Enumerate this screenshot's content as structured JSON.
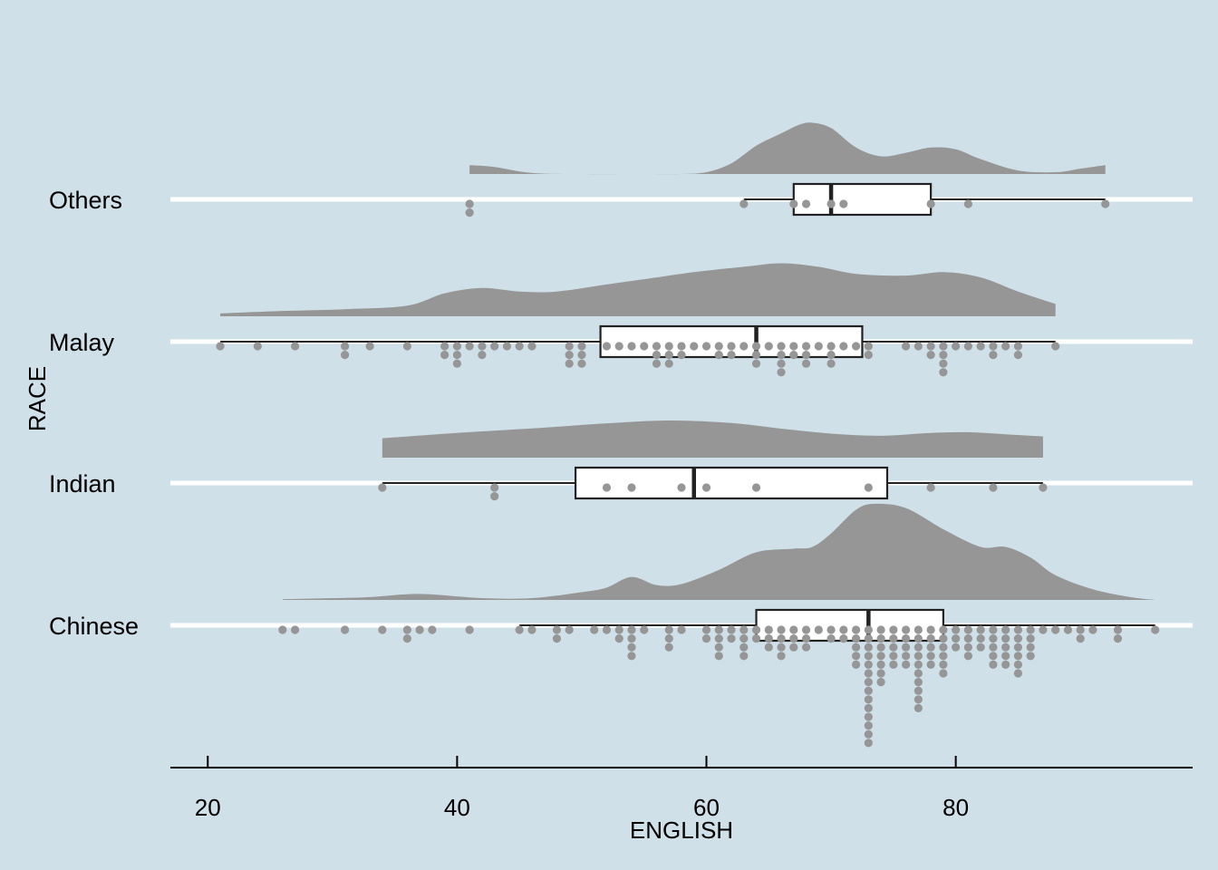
{
  "chart_data": {
    "type": "raincloud",
    "title": "",
    "xlabel": "ENGLISH",
    "ylabel": "RACE",
    "xlim": [
      17,
      99
    ],
    "xticks": [
      20,
      40,
      60,
      80
    ],
    "xtick_labels": [
      "20",
      "40",
      "60",
      "80"
    ],
    "grid": "horizontal",
    "background_color": "#cfe0e8",
    "density_color": "#969696",
    "point_color": "#969696",
    "box_fill": "#ffffff",
    "box_stroke": "#222222",
    "categories": [
      "Chinese",
      "Indian",
      "Malay",
      "Others"
    ],
    "groups": [
      {
        "name": "Chinese",
        "box": {
          "min": 45,
          "q1": 64,
          "median": 73,
          "q3": 79,
          "max": 96
        },
        "outliers": [
          26,
          27,
          31,
          34,
          36,
          36,
          37,
          38,
          41
        ],
        "points": [
          45,
          46,
          48,
          48,
          49,
          51,
          52,
          53,
          53,
          54,
          54,
          54,
          54,
          55,
          57,
          57,
          57,
          58,
          60,
          60,
          61,
          61,
          61,
          61,
          62,
          62,
          63,
          63,
          63,
          63,
          64,
          64,
          65,
          65,
          65,
          66,
          66,
          66,
          66,
          67,
          67,
          67,
          68,
          68,
          68,
          69,
          70,
          70,
          71,
          71,
          72,
          72,
          72,
          72,
          72,
          73,
          73,
          73,
          73,
          73,
          73,
          73,
          73,
          73,
          73,
          73,
          73,
          73,
          73,
          74,
          74,
          74,
          74,
          74,
          74,
          74,
          75,
          75,
          75,
          75,
          75,
          76,
          76,
          76,
          76,
          76,
          77,
          77,
          77,
          77,
          77,
          77,
          77,
          77,
          77,
          77,
          78,
          78,
          78,
          78,
          78,
          79,
          79,
          79,
          79,
          79,
          79,
          80,
          80,
          80,
          81,
          81,
          81,
          81,
          82,
          82,
          82,
          83,
          83,
          83,
          83,
          83,
          84,
          84,
          84,
          84,
          84,
          85,
          85,
          85,
          85,
          85,
          85,
          86,
          86,
          86,
          86,
          87,
          88,
          89,
          90,
          90,
          91,
          93,
          93,
          96
        ],
        "density": [
          [
            26,
            0.02
          ],
          [
            30,
            0.05
          ],
          [
            33,
            0.08
          ],
          [
            37,
            0.17
          ],
          [
            42,
            0.05
          ],
          [
            46,
            0.05
          ],
          [
            50,
            0.22
          ],
          [
            52,
            0.35
          ],
          [
            54,
            0.65
          ],
          [
            56,
            0.42
          ],
          [
            58,
            0.45
          ],
          [
            61,
            0.85
          ],
          [
            64,
            1.35
          ],
          [
            67,
            1.45
          ],
          [
            68.5,
            1.5
          ],
          [
            70,
            1.88
          ],
          [
            72,
            2.55
          ],
          [
            73.5,
            2.72
          ],
          [
            76,
            2.6
          ],
          [
            79,
            2.0
          ],
          [
            82,
            1.5
          ],
          [
            84,
            1.5
          ],
          [
            86,
            1.2
          ],
          [
            88,
            0.7
          ],
          [
            91,
            0.3
          ],
          [
            94,
            0.08
          ],
          [
            96,
            0.0
          ]
        ]
      },
      {
        "name": "Indian",
        "box": {
          "min": 34,
          "q1": 49.5,
          "median": 59,
          "q3": 74.5,
          "max": 87
        },
        "outliers": [],
        "points": [
          34,
          43,
          43,
          52,
          54,
          58,
          60,
          64,
          73,
          78,
          83,
          87
        ],
        "density": [
          [
            34,
            0.55
          ],
          [
            40,
            0.7
          ],
          [
            47,
            0.85
          ],
          [
            52,
            0.97
          ],
          [
            57,
            1.05
          ],
          [
            62,
            0.98
          ],
          [
            66,
            0.82
          ],
          [
            70,
            0.68
          ],
          [
            74,
            0.62
          ],
          [
            78,
            0.7
          ],
          [
            81,
            0.72
          ],
          [
            84,
            0.66
          ],
          [
            87,
            0.6
          ]
        ]
      },
      {
        "name": "Malay",
        "box": {
          "min": 21,
          "q1": 51.5,
          "median": 64,
          "q3": 72.5,
          "max": 88
        },
        "outliers": [],
        "points": [
          21,
          24,
          27,
          31,
          31,
          33,
          36,
          39,
          39,
          40,
          40,
          40,
          41,
          42,
          42,
          43,
          44,
          45,
          46,
          49,
          49,
          49,
          50,
          50,
          50,
          52,
          53,
          54,
          55,
          56,
          56,
          56,
          57,
          57,
          57,
          58,
          58,
          59,
          60,
          61,
          61,
          62,
          62,
          63,
          64,
          64,
          64,
          65,
          66,
          66,
          66,
          66,
          67,
          67,
          68,
          68,
          68,
          69,
          70,
          70,
          70,
          71,
          72,
          73,
          73,
          76,
          77,
          78,
          78,
          79,
          79,
          79,
          79,
          80,
          81,
          82,
          83,
          83,
          84,
          85,
          85,
          88
        ],
        "density": [
          [
            21,
            0.08
          ],
          [
            26,
            0.15
          ],
          [
            31,
            0.2
          ],
          [
            36,
            0.3
          ],
          [
            39,
            0.65
          ],
          [
            42,
            0.8
          ],
          [
            45,
            0.7
          ],
          [
            48,
            0.7
          ],
          [
            52,
            0.9
          ],
          [
            56,
            1.1
          ],
          [
            59,
            1.25
          ],
          [
            63,
            1.4
          ],
          [
            66,
            1.5
          ],
          [
            69,
            1.4
          ],
          [
            72,
            1.2
          ],
          [
            76,
            1.15
          ],
          [
            79,
            1.25
          ],
          [
            82,
            1.1
          ],
          [
            85,
            0.7
          ],
          [
            88,
            0.35
          ]
        ]
      },
      {
        "name": "Others",
        "box": {
          "min": 63,
          "q1": 67,
          "median": 70,
          "q3": 78,
          "max": 92
        },
        "outliers": [
          41
        ],
        "points": [
          41,
          63,
          67,
          68,
          70,
          71,
          78,
          81,
          92
        ],
        "density": [
          [
            41,
            0.25
          ],
          [
            43,
            0.2
          ],
          [
            46,
            0.03
          ],
          [
            50,
            0.0
          ],
          [
            55,
            0.0
          ],
          [
            58,
            0.0
          ],
          [
            60,
            0.05
          ],
          [
            62,
            0.3
          ],
          [
            64,
            0.8
          ],
          [
            66,
            1.15
          ],
          [
            67.5,
            1.4
          ],
          [
            68.5,
            1.45
          ],
          [
            70,
            1.3
          ],
          [
            72,
            0.75
          ],
          [
            74,
            0.5
          ],
          [
            76,
            0.6
          ],
          [
            78,
            0.75
          ],
          [
            80,
            0.7
          ],
          [
            82,
            0.42
          ],
          [
            85,
            0.1
          ],
          [
            88,
            0.05
          ],
          [
            90,
            0.15
          ],
          [
            92,
            0.25
          ]
        ]
      }
    ]
  }
}
